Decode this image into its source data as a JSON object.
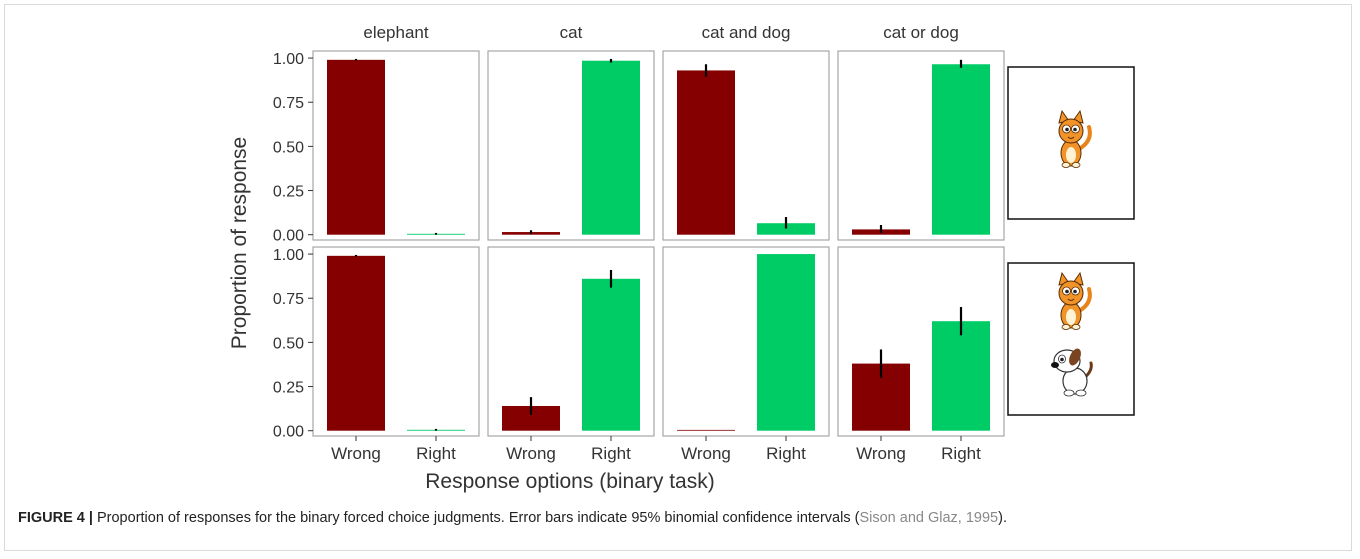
{
  "chart_data": {
    "type": "bar",
    "facet_columns": [
      "elephant",
      "cat",
      "cat and dog",
      "cat or dog"
    ],
    "rows": [
      {
        "name": "top",
        "image_icons": [
          "cat-icon"
        ],
        "panels": [
          {
            "values": [
              0.99,
              0.005
            ],
            "errors": [
              [
                0.985,
                0.995
              ],
              [
                0.0,
                0.01
              ]
            ]
          },
          {
            "values": [
              0.015,
              0.985
            ],
            "errors": [
              [
                0.005,
                0.025
              ],
              [
                0.975,
                0.995
              ]
            ]
          },
          {
            "values": [
              0.93,
              0.065
            ],
            "errors": [
              [
                0.895,
                0.965
              ],
              [
                0.035,
                0.1
              ]
            ]
          },
          {
            "values": [
              0.03,
              0.965
            ],
            "errors": [
              [
                0.01,
                0.055
              ],
              [
                0.945,
                0.99
              ]
            ]
          }
        ]
      },
      {
        "name": "bottom",
        "image_icons": [
          "cat-icon",
          "dog-icon"
        ],
        "panels": [
          {
            "values": [
              0.99,
              0.005
            ],
            "errors": [
              [
                0.985,
                0.995
              ],
              [
                0.0,
                0.01
              ]
            ]
          },
          {
            "values": [
              0.14,
              0.86
            ],
            "errors": [
              [
                0.09,
                0.19
              ],
              [
                0.81,
                0.91
              ]
            ]
          },
          {
            "values": [
              0.0,
              1.0
            ],
            "errors": [
              [
                0.0,
                0.0
              ],
              [
                1.0,
                1.0
              ]
            ]
          },
          {
            "values": [
              0.38,
              0.62
            ],
            "errors": [
              [
                0.3,
                0.46
              ],
              [
                0.54,
                0.7
              ]
            ]
          }
        ]
      }
    ],
    "categories": [
      "Wrong",
      "Right"
    ],
    "colors": {
      "Wrong": "#850000",
      "Right": "#00cc66"
    },
    "yticks": [
      0.0,
      0.25,
      0.5,
      0.75,
      1.0
    ],
    "ytick_labels": [
      "0.00",
      "0.25",
      "0.50",
      "0.75",
      "1.00"
    ],
    "ylim": [
      -0.03,
      1.04
    ],
    "ylabel": "Proportion of response",
    "xlabel": "Response options (binary task)",
    "grid": false,
    "legend": "none"
  },
  "caption": {
    "label": "FIGURE 4 |",
    "text": " Proportion of responses for the binary forced choice judgments. Error bars indicate 95% binomial confidence intervals (",
    "citation": "Sison and Glaz, 1995",
    "end": ")."
  }
}
